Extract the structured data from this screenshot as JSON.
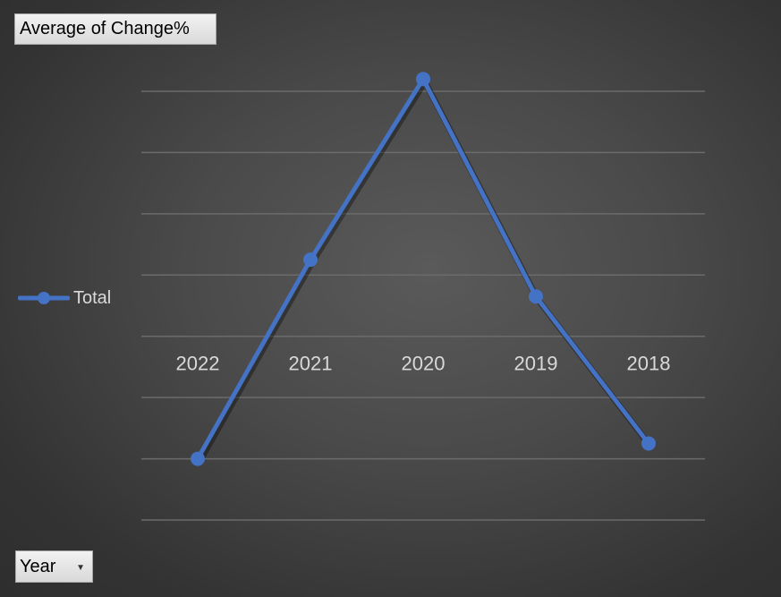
{
  "field_buttons": {
    "value_field": "Average of Change%",
    "axis_field": "Year"
  },
  "chart_data": {
    "type": "line",
    "categories": [
      "2022",
      "2021",
      "2020",
      "2019",
      "2018"
    ],
    "series": [
      {
        "name": "Total",
        "values": [
          -2.0,
          1.25,
          4.2,
          0.65,
          -1.75
        ],
        "color": "#4472c4"
      }
    ],
    "title": "",
    "xlabel": "",
    "ylabel": "",
    "ylim": [
      -3,
      4
    ],
    "grid": true,
    "legend": "left"
  },
  "colors": {
    "series_line": "#4472c4",
    "gridline": "#6b6b6b",
    "label_text": "#d9d9d9"
  }
}
